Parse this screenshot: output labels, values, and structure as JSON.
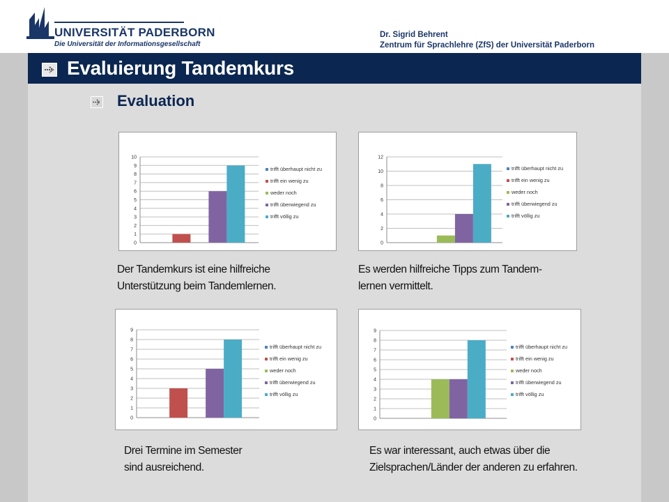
{
  "header": {
    "logo": {
      "name": "UNIVERSITÄT PADERBORN",
      "tagline": "Die Universität der Informationsgesellschaft"
    },
    "author_line1": "Dr. Sigrid Behrent",
    "author_line2": "Zentrum für Sprachlehre (ZfS) der Universität Paderborn"
  },
  "slide": {
    "title": "Evaluierung Tandemkurs",
    "subtitle": "Evaluation"
  },
  "colors": {
    "navy": "#0b2650",
    "series": [
      "#4f81bd",
      "#c0504d",
      "#9bbb59",
      "#8064a2",
      "#4bacc6"
    ]
  },
  "chart_data": [
    {
      "type": "bar",
      "categories": [
        "trifft überhaupt nicht zu",
        "trifft ein wenig zu",
        "weder noch",
        "trifft überwiegend zu",
        "trifft völlig zu"
      ],
      "values": [
        0,
        1,
        0,
        6,
        9
      ],
      "ylim": [
        0,
        10
      ],
      "yticks": [
        0,
        1,
        2,
        3,
        4,
        5,
        6,
        7,
        8,
        9,
        10
      ],
      "grid": true,
      "legend": "right",
      "caption_line1": "Der Tandemkurs ist eine hilfreiche",
      "caption_line2": "Unterstützung beim Tandemlernen."
    },
    {
      "type": "bar",
      "categories": [
        "trifft überhaupt nicht zu",
        "trifft ein wenig zu",
        "weder noch",
        "trifft überwiegend zu",
        "trifft völlig zu"
      ],
      "values": [
        0,
        0,
        1,
        4,
        11
      ],
      "ylim": [
        0,
        12
      ],
      "yticks": [
        0,
        2,
        4,
        6,
        8,
        10,
        12
      ],
      "grid": true,
      "legend": "right",
      "caption_line1": "Es werden hilfreiche Tipps zum Tandem-",
      "caption_line2": "lernen vermittelt."
    },
    {
      "type": "bar",
      "categories": [
        "trifft überhaupt nicht zu",
        "trifft ein wenig zu",
        "weder noch",
        "trifft überwiegend zu",
        "trifft völlig zu"
      ],
      "values": [
        0,
        3,
        0,
        5,
        8
      ],
      "ylim": [
        0,
        9
      ],
      "yticks": [
        0,
        1,
        2,
        3,
        4,
        5,
        6,
        7,
        8,
        9
      ],
      "grid": true,
      "legend": "right",
      "caption_line1": "Drei Termine im Semester",
      "caption_line2": "sind ausreichend."
    },
    {
      "type": "bar",
      "categories": [
        "trifft überhaupt nicht zu",
        "trifft ein wenig zu",
        "weder noch",
        "trifft überwiegend zu",
        "trifft völlig zu"
      ],
      "values": [
        0,
        0,
        4,
        4,
        8
      ],
      "ylim": [
        0,
        9
      ],
      "yticks": [
        0,
        1,
        2,
        3,
        4,
        5,
        6,
        7,
        8,
        9
      ],
      "grid": true,
      "legend": "right",
      "caption_line1": "Es war interessant, auch etwas über die",
      "caption_line2": "Zielsprachen/Länder der anderen zu erfahren."
    }
  ]
}
